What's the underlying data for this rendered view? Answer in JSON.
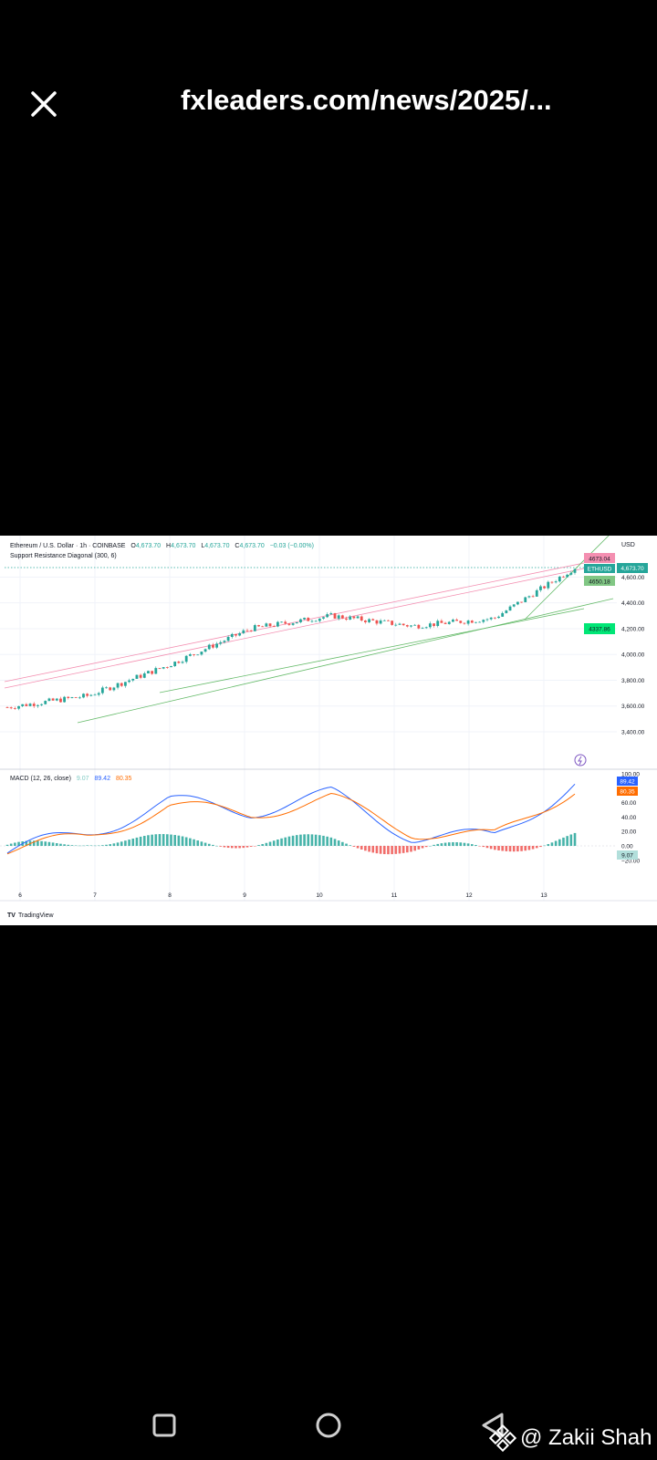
{
  "header": {
    "url": "fxleaders.com/news/2025/..."
  },
  "colors": {
    "up": "#26a69a",
    "down": "#ef5350",
    "macd_line": "#2962ff",
    "signal_line": "#ff6d00",
    "resistance": "#f48fb1",
    "support": "#66bb6a"
  },
  "chart": {
    "title": "Ethereum / U.S. Dollar · 1h · COINBASE",
    "ohlc": {
      "o_label": "O",
      "o": "4,673.70",
      "h_label": "H",
      "h": "4,673.70",
      "l_label": "L",
      "l": "4,673.70",
      "c_label": "C",
      "c": "4,673.70",
      "change": "−0.03 (−0.00%)"
    },
    "indicator_label": "Support Resistance Diagonal (300, 6)",
    "currency": "USD",
    "price_ticks": [
      "4,600.00",
      "4,400.00",
      "4,200.00",
      "4,000.00",
      "3,800.00",
      "3,600.00",
      "3,400.00"
    ],
    "symbol_badge": "ETHUSD",
    "last_price_badge": "4,673.70",
    "resistance_label": "4673.04",
    "support_near_label": "4650.18",
    "support_far_label": "4337.86",
    "date_ticks": [
      "6",
      "7",
      "8",
      "9",
      "10",
      "11",
      "12",
      "13"
    ],
    "macd": {
      "label": "MACD (12, 26, close)",
      "hist_value": "9.07",
      "macd_value": "89.42",
      "signal_value": "80.35",
      "ticks": [
        "100.00",
        "60.00",
        "40.00",
        "20.00",
        "0.00",
        "−20.00"
      ]
    },
    "brand": "TradingView"
  },
  "chart_data": [
    {
      "type": "candlestick",
      "title": "Ethereum / U.S. Dollar · 1h · COINBASE",
      "x": [
        "6",
        "7",
        "8",
        "9",
        "10",
        "11",
        "12",
        "13"
      ],
      "close_approx": [
        3590,
        3680,
        3920,
        4200,
        4300,
        4220,
        4280,
        4673.7
      ],
      "ylim": [
        3400,
        4750
      ],
      "levels": {
        "resistance": 4673.04,
        "support_near": 4650.18,
        "support_far": 4337.86
      },
      "last_price": 4673.7
    },
    {
      "type": "line",
      "title": "MACD (12, 26, close)",
      "x": [
        "6",
        "7",
        "8",
        "9",
        "10",
        "11",
        "12",
        "13"
      ],
      "series": [
        {
          "name": "MACD",
          "values": [
            -10,
            20,
            60,
            50,
            70,
            15,
            10,
            89.42
          ]
        },
        {
          "name": "Signal",
          "values": [
            -5,
            12,
            55,
            45,
            65,
            20,
            12,
            80.35
          ]
        },
        {
          "name": "Histogram",
          "values": [
            -5,
            8,
            5,
            5,
            5,
            -5,
            -2,
            9.07
          ]
        }
      ],
      "ylim": [
        -30,
        100
      ]
    }
  ],
  "watermark": {
    "text": "@ Zakii Shah"
  }
}
